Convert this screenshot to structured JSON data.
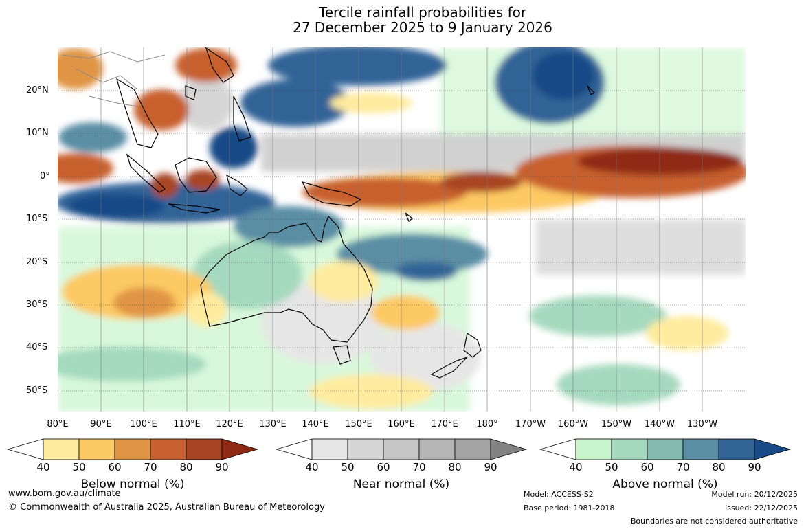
{
  "title": {
    "line1": "Tercile rainfall probabilities for",
    "line2": "27 December 2025 to 9 January 2026"
  },
  "map": {
    "lat_labels": [
      "20°N",
      "10°N",
      "0°",
      "10°S",
      "20°S",
      "30°S",
      "40°S",
      "50°S"
    ],
    "lon_labels": [
      "80°E",
      "90°E",
      "100°E",
      "110°E",
      "120°E",
      "130°E",
      "140°E",
      "150°E",
      "160°E",
      "170°E",
      "180°",
      "170°W",
      "160°W",
      "150°W",
      "140°W",
      "130°W"
    ]
  },
  "colorbars": [
    {
      "title": "Below normal (%)",
      "ticks": [
        "40",
        "50",
        "60",
        "70",
        "80",
        "90"
      ],
      "colors": [
        "#ffffff",
        "#ffeb9e",
        "#fdc964",
        "#e09545",
        "#c8602f",
        "#a84421",
        "#8e2a14"
      ]
    },
    {
      "title": "Near normal (%)",
      "ticks": [
        "40",
        "50",
        "60",
        "70",
        "80",
        "90"
      ],
      "colors": [
        "#ffffff",
        "#e6e6e6",
        "#d5d5d5",
        "#c6c6c6",
        "#b5b5b5",
        "#a3a3a3",
        "#828282"
      ]
    },
    {
      "title": "Above normal (%)",
      "ticks": [
        "40",
        "50",
        "60",
        "70",
        "80",
        "90"
      ],
      "colors": [
        "#ffffff",
        "#c8f5cc",
        "#a5d9be",
        "#84b9b0",
        "#5a8ea5",
        "#326497",
        "#174a86"
      ]
    }
  ],
  "footer": {
    "website": "www.bom.gov.au/climate",
    "copyright": "© Commonwealth of Australia 2025, Australian Bureau of Meteorology",
    "model": "Model: ACCESS-S2",
    "base_period": "Base period: 1981-2018",
    "model_run": "Model run: 20/12/2025",
    "issued": "Issued: 22/12/2025",
    "boundaries": "Boundaries are not considered authoritative"
  }
}
